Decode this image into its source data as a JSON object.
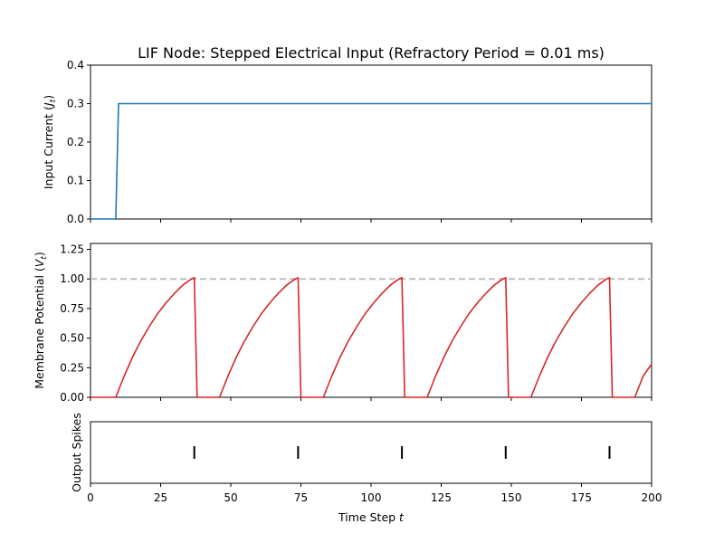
{
  "chart_data": [
    {
      "type": "line",
      "title": "LIF Node: Stepped Electrical Input (Refractory Period = 0.01 ms)",
      "ylabel": "Input Current (",
      "ylabel_symbol": "J",
      "ylabel_subscript": "t",
      "ylabel_suffix": ")",
      "xlim": [
        0,
        200
      ],
      "ylim": [
        0,
        0.4
      ],
      "yticks": [
        "0.0",
        "0.1",
        "0.2",
        "0.3",
        "0.4"
      ],
      "ytick_values": [
        0,
        0.1,
        0.2,
        0.3,
        0.4
      ],
      "series": [
        {
          "color": "#1f77b4",
          "x": [
            0,
            9,
            10,
            200
          ],
          "y": [
            0,
            0,
            0.3,
            0.3
          ]
        }
      ]
    },
    {
      "type": "line",
      "ylabel": "Membrane Potential (",
      "ylabel_symbol": "V",
      "ylabel_subscript": "t",
      "ylabel_suffix": ")",
      "xlim": [
        0,
        200
      ],
      "ylim": [
        0,
        1.3
      ],
      "yticks": [
        "0.00",
        "0.25",
        "0.50",
        "0.75",
        "1.00",
        "1.25"
      ],
      "ytick_values": [
        0,
        0.25,
        0.5,
        0.75,
        1.0,
        1.25
      ],
      "threshold": 1.0,
      "threshold_color": "#bfbfbf",
      "series": [
        {
          "color": "#d62728",
          "x": [
            0,
            9,
            12,
            15,
            18,
            21,
            24,
            27,
            30,
            33,
            36,
            37,
            38,
            46,
            49,
            52,
            55,
            58,
            61,
            64,
            67,
            70,
            73,
            74,
            75,
            83,
            86,
            89,
            92,
            95,
            98,
            101,
            104,
            107,
            110,
            111,
            112,
            120,
            123,
            126,
            129,
            132,
            135,
            138,
            141,
            144,
            147,
            148,
            149,
            157,
            160,
            163,
            166,
            169,
            172,
            175,
            178,
            181,
            184,
            185,
            186,
            194,
            197,
            200
          ],
          "y": [
            0,
            0,
            0.18,
            0.34,
            0.48,
            0.6,
            0.71,
            0.8,
            0.88,
            0.95,
            1.0,
            1.01,
            0,
            0,
            0.18,
            0.34,
            0.48,
            0.6,
            0.71,
            0.8,
            0.88,
            0.95,
            1.0,
            1.01,
            0,
            0,
            0.18,
            0.34,
            0.48,
            0.6,
            0.71,
            0.8,
            0.88,
            0.95,
            1.0,
            1.01,
            0,
            0,
            0.18,
            0.34,
            0.48,
            0.6,
            0.71,
            0.8,
            0.88,
            0.95,
            1.0,
            1.01,
            0,
            0,
            0.18,
            0.34,
            0.48,
            0.6,
            0.71,
            0.8,
            0.88,
            0.95,
            1.0,
            1.01,
            0,
            0,
            0.18,
            0.28
          ]
        }
      ]
    },
    {
      "type": "scatter",
      "ylabel": "Output Spikes",
      "xlabel": "Time Step ",
      "xlabel_symbol": "t",
      "xlim": [
        0,
        200
      ],
      "xticks": [
        "0",
        "25",
        "50",
        "75",
        "100",
        "125",
        "150",
        "175",
        "200"
      ],
      "xtick_values": [
        0,
        25,
        50,
        75,
        100,
        125,
        150,
        175,
        200
      ],
      "spike_times": [
        37,
        74,
        111,
        148,
        185
      ],
      "spike_color": "#000000"
    }
  ]
}
